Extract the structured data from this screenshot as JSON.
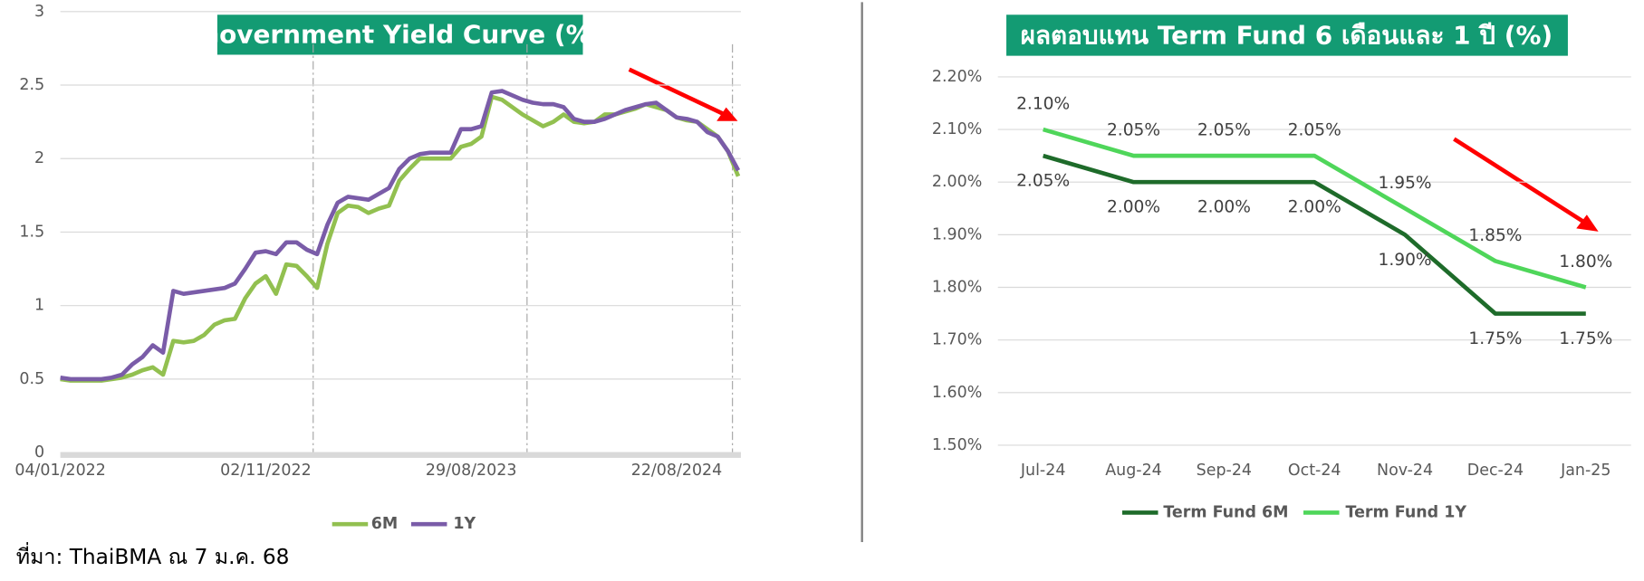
{
  "source": "ที่มา: ThaiBMA ณ 7 ม.ค. 68",
  "chart_data": [
    {
      "type": "line",
      "title": "Government Yield Curve (%)",
      "categories": [
        "04/01/2022",
        null,
        null,
        null,
        null,
        null,
        null,
        null,
        null,
        null,
        null,
        null,
        null,
        null,
        null,
        null,
        null,
        null,
        null,
        null,
        "02/11/2022",
        null,
        null,
        null,
        null,
        null,
        null,
        null,
        null,
        null,
        null,
        null,
        null,
        null,
        null,
        null,
        null,
        null,
        null,
        null,
        "29/08/2023",
        null,
        null,
        null,
        null,
        null,
        null,
        null,
        null,
        null,
        null,
        null,
        null,
        null,
        null,
        null,
        null,
        null,
        null,
        null,
        "22/08/2024",
        null,
        null,
        null,
        null,
        null,
        null
      ],
      "series": [
        {
          "name": "6M",
          "color": "#92c050",
          "values": [
            0.5,
            0.49,
            0.49,
            0.49,
            0.49,
            0.5,
            0.51,
            0.53,
            0.56,
            0.58,
            0.53,
            0.76,
            0.75,
            0.76,
            0.8,
            0.87,
            0.9,
            0.91,
            1.05,
            1.15,
            1.2,
            1.08,
            1.28,
            1.27,
            1.2,
            1.12,
            1.42,
            1.63,
            1.68,
            1.67,
            1.63,
            1.66,
            1.68,
            1.85,
            1.93,
            2.0,
            2.0,
            2.0,
            2.0,
            2.08,
            2.1,
            2.15,
            2.42,
            2.4,
            2.35,
            2.3,
            2.26,
            2.22,
            2.25,
            2.3,
            2.25,
            2.24,
            2.25,
            2.3,
            2.3,
            2.32,
            2.34,
            2.37,
            2.35,
            2.33,
            2.28,
            2.26,
            2.25,
            2.2,
            2.15,
            2.05,
            1.88
          ]
        },
        {
          "name": "1Y",
          "color": "#7a5ca8",
          "values": [
            0.51,
            0.5,
            0.5,
            0.5,
            0.5,
            0.51,
            0.53,
            0.6,
            0.65,
            0.73,
            0.68,
            1.1,
            1.08,
            1.09,
            1.1,
            1.11,
            1.12,
            1.15,
            1.25,
            1.36,
            1.37,
            1.35,
            1.43,
            1.43,
            1.38,
            1.35,
            1.55,
            1.7,
            1.74,
            1.73,
            1.72,
            1.76,
            1.8,
            1.93,
            2.0,
            2.03,
            2.04,
            2.04,
            2.04,
            2.2,
            2.2,
            2.22,
            2.45,
            2.46,
            2.43,
            2.4,
            2.38,
            2.37,
            2.37,
            2.35,
            2.27,
            2.25,
            2.25,
            2.27,
            2.3,
            2.33,
            2.35,
            2.37,
            2.38,
            2.33,
            2.28,
            2.27,
            2.25,
            2.18,
            2.15,
            2.05,
            1.92
          ]
        }
      ],
      "ylim": [
        0,
        3
      ],
      "yticks": [
        0,
        0.5,
        1,
        1.5,
        2,
        2.5,
        3
      ],
      "grid": true
    },
    {
      "type": "line",
      "title": "ผลตอบแทน Term Fund 6 เดือนและ 1 ปี (%)",
      "categories": [
        "Jul-24",
        "Aug-24",
        "Sep-24",
        "Oct-24",
        "Nov-24",
        "Dec-24",
        "Jan-25"
      ],
      "series": [
        {
          "name": "Term Fund 6M",
          "color": "#1e6b2a",
          "values": [
            2.05,
            2.0,
            2.0,
            2.0,
            1.9,
            1.75,
            1.75
          ],
          "value_labels": [
            "2.05%",
            "2.00%",
            "2.00%",
            "2.00%",
            "1.90%",
            "1.75%",
            "1.75%"
          ]
        },
        {
          "name": "Term Fund 1Y",
          "color": "#4fd65a",
          "values": [
            2.1,
            2.05,
            2.05,
            2.05,
            1.95,
            1.85,
            1.8
          ],
          "value_labels": [
            "2.10%",
            "2.05%",
            "2.05%",
            "2.05%",
            "1.95%",
            "1.85%",
            "1.80%"
          ]
        }
      ],
      "ylim": [
        1.5,
        2.2
      ],
      "yticks": [
        {
          "value": 1.5,
          "label": "1.50%"
        },
        {
          "value": 1.6,
          "label": "1.60%"
        },
        {
          "value": 1.7,
          "label": "1.70%"
        },
        {
          "value": 1.8,
          "label": "1.80%"
        },
        {
          "value": 1.9,
          "label": "1.90%"
        },
        {
          "value": 2.0,
          "label": "2.00%"
        },
        {
          "value": 2.1,
          "label": "2.10%"
        },
        {
          "value": 2.2,
          "label": "2.20%"
        }
      ],
      "grid": true
    }
  ]
}
